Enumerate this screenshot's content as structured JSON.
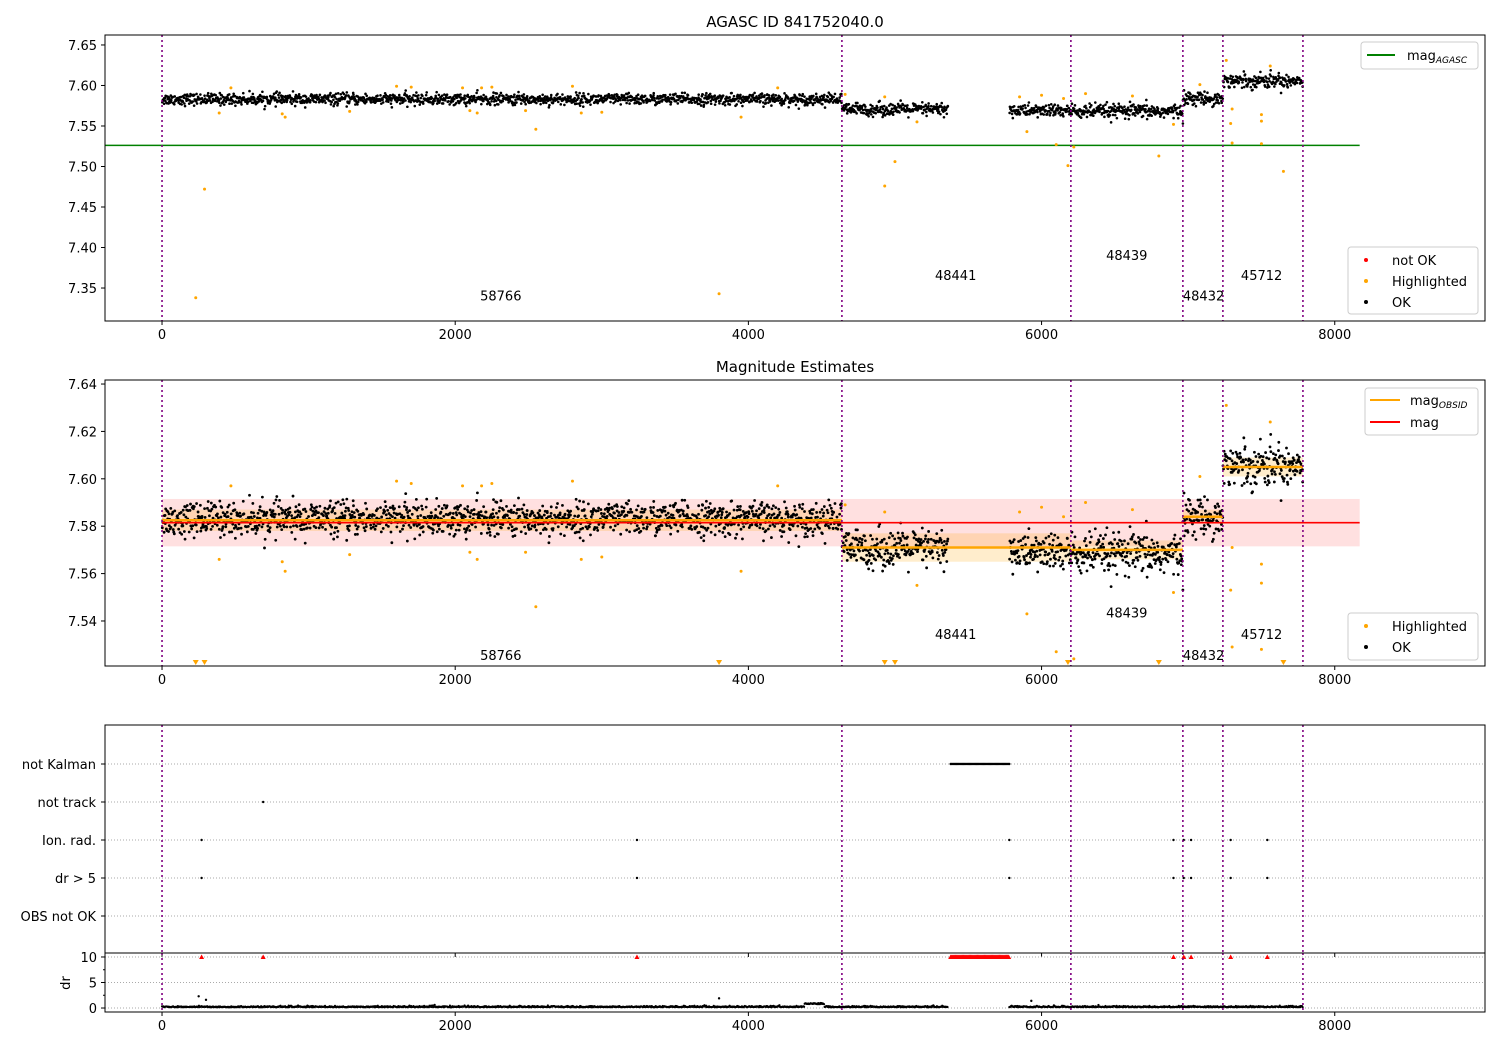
{
  "chart_data": [
    {
      "type": "scatter",
      "title": "AGASC ID 841752040.0",
      "xlim": [
        -389,
        9025
      ],
      "ylim": [
        7.3093,
        7.6623
      ],
      "xticks": [
        0,
        2000,
        4000,
        6000,
        8000
      ],
      "yticks": [
        7.35,
        7.4,
        7.45,
        7.5,
        7.55,
        7.6,
        7.65
      ],
      "ytick_labels": [
        "7.35",
        "7.40",
        "7.45",
        "7.50",
        "7.55",
        "7.60",
        "7.65"
      ],
      "mag_agasc": 7.526,
      "mag_agasc_xrange": [
        -389,
        8170
      ],
      "legend_top": {
        "label": "mag",
        "sub": "AGASC",
        "color": "#008000"
      },
      "legend_bottom": [
        {
          "label": "not OK",
          "color": "#ff0000"
        },
        {
          "label": "Highlighted",
          "color": "#ffa500"
        },
        {
          "label": "OK",
          "color": "#000000"
        }
      ]
    },
    {
      "type": "scatter",
      "title": "Magnitude Estimates",
      "xlim": [
        -389,
        9025
      ],
      "ylim": [
        7.521,
        7.6417
      ],
      "xticks": [
        0,
        2000,
        4000,
        6000,
        8000
      ],
      "yticks": [
        7.54,
        7.56,
        7.58,
        7.6,
        7.62,
        7.64
      ],
      "ytick_labels": [
        "7.54",
        "7.56",
        "7.58",
        "7.60",
        "7.62",
        "7.64"
      ],
      "mag": 7.5815,
      "mag_band": [
        7.5715,
        7.5915
      ],
      "mag_xrange": [
        0,
        8170
      ],
      "obsid_mags": [
        {
          "x": [
            0,
            4638
          ],
          "mag": 7.5825,
          "band": [
            7.578,
            7.587
          ]
        },
        {
          "x": [
            4638,
            6200
          ],
          "mag": 7.571,
          "band": [
            7.565,
            7.577
          ]
        },
        {
          "x": [
            6200,
            6964
          ],
          "mag": 7.57,
          "band": [
            7.566,
            7.574
          ]
        },
        {
          "x": [
            6964,
            7237
          ],
          "mag": 7.584,
          "band": [
            7.581,
            7.587
          ]
        },
        {
          "x": [
            7237,
            7783
          ],
          "mag": 7.605,
          "band": [
            7.601,
            7.609
          ]
        }
      ],
      "legend_top": [
        {
          "label": "mag",
          "sub": "OBSID",
          "color": "#ffa500"
        },
        {
          "label": "mag",
          "sub": "",
          "color": "#ff0000"
        }
      ],
      "legend_bottom": [
        {
          "label": "Highlighted",
          "color": "#ffa500"
        },
        {
          "label": "OK",
          "color": "#000000"
        }
      ]
    },
    {
      "type": "scatter",
      "title": "",
      "categories": [
        "not Kalman",
        "not track",
        "Ion. rad.",
        "dr > 5",
        "OBS not OK"
      ],
      "xticks": [
        0,
        2000,
        4000,
        6000,
        8000
      ],
      "flags": {
        "not Kalman": {
          "range": [
            5380,
            5780
          ]
        },
        "not track": {
          "x": [
            690
          ]
        },
        "Ion. rad.": {
          "x": [
            270,
            3240,
            5780,
            6900,
            6970,
            7020,
            7290,
            7540
          ]
        },
        "dr > 5": {
          "x": [
            270,
            3240,
            5780,
            6900,
            6970,
            7020,
            7290,
            7540
          ]
        },
        "OBS not OK": {
          "x": []
        }
      }
    },
    {
      "type": "scatter",
      "ylabel": "dr",
      "ylim": [
        -0.78,
        10.78
      ],
      "yticks": [
        0,
        5,
        10
      ],
      "ytick_labels": [
        "0",
        "5",
        "10"
      ],
      "xticks": [
        0,
        2000,
        4000,
        6000,
        8000
      ],
      "xtick_labels": [
        "0",
        "2000",
        "4000",
        "6000",
        "8000"
      ],
      "clipped_at": 10,
      "clipped_x": [
        270,
        690,
        3240,
        6900,
        6970,
        7020,
        7290,
        7540
      ],
      "outliers": [
        [
          250,
          2.3
        ],
        [
          300,
          1.6
        ],
        [
          3800,
          1.9
        ],
        [
          5930,
          1.4
        ]
      ]
    }
  ],
  "xtick_labels": [
    "0",
    "2000",
    "4000",
    "6000",
    "8000"
  ],
  "obsid_boundaries": [
    0,
    4638,
    6200,
    6964,
    7237,
    7783
  ],
  "obsid_labels": [
    {
      "text": "58766",
      "x": 2170,
      "y1": 7.325,
      "y2": 7.526
    },
    {
      "text": "48441",
      "x": 5273,
      "y1": 7.35,
      "y2": 7.535
    },
    {
      "text": "48439",
      "x": 6440,
      "y1": 7.375,
      "y2": 7.544
    },
    {
      "text": "48432",
      "x": 6964,
      "y1": 7.325,
      "y2": 7.526
    },
    {
      "text": "45712",
      "x": 7360,
      "y1": 7.35,
      "y2": 7.535
    }
  ],
  "segments": [
    {
      "x": [
        0,
        4638
      ],
      "mean": 7.583,
      "std": 0.0035
    },
    {
      "x": [
        4638,
        5360
      ],
      "mean": 7.5705,
      "std": 0.004
    },
    {
      "x": [
        5780,
        6200
      ],
      "mean": 7.569,
      "std": 0.004
    },
    {
      "x": [
        6200,
        6964
      ],
      "mean": 7.568,
      "std": 0.0045
    },
    {
      "x": [
        6964,
        7237
      ],
      "mean": 7.584,
      "std": 0.004
    },
    {
      "x": [
        7237,
        7783
      ],
      "mean": 7.606,
      "std": 0.0045
    }
  ],
  "highlighted": [
    [
      230,
      7.338
    ],
    [
      290,
      7.472
    ],
    [
      3800,
      7.343
    ],
    [
      4930,
      7.476
    ],
    [
      5000,
      7.506
    ],
    [
      6180,
      7.501
    ],
    [
      6800,
      7.513
    ],
    [
      7650,
      7.494
    ],
    [
      7300,
      7.529
    ],
    [
      7500,
      7.528
    ],
    [
      7290,
      7.553
    ],
    [
      7500,
      7.556
    ],
    [
      5900,
      7.543
    ],
    [
      2550,
      7.546
    ],
    [
      4930,
      7.586
    ],
    [
      5150,
      7.555
    ],
    [
      6220,
      7.524
    ],
    [
      6100,
      7.527
    ],
    [
      7300,
      7.571
    ],
    [
      7260,
      7.631
    ],
    [
      7560,
      7.624
    ],
    [
      7500,
      7.564
    ],
    [
      6900,
      7.552
    ],
    [
      7080,
      7.601
    ],
    [
      390,
      7.566
    ],
    [
      470,
      7.597
    ],
    [
      840,
      7.561
    ],
    [
      820,
      7.565
    ],
    [
      1600,
      7.599
    ],
    [
      1700,
      7.598
    ],
    [
      2050,
      7.597
    ],
    [
      2180,
      7.597
    ],
    [
      2250,
      7.598
    ],
    [
      2800,
      7.599
    ],
    [
      2860,
      7.566
    ],
    [
      3000,
      7.567
    ],
    [
      3950,
      7.561
    ],
    [
      4200,
      7.597
    ],
    [
      2150,
      7.566
    ],
    [
      2100,
      7.569
    ],
    [
      5850,
      7.586
    ],
    [
      6000,
      7.588
    ],
    [
      6300,
      7.59
    ],
    [
      6620,
      7.587
    ],
    [
      6150,
      7.584
    ],
    [
      4660,
      7.589
    ],
    [
      2480,
      7.569
    ],
    [
      1280,
      7.568
    ]
  ],
  "below_range_x": [
    230,
    290,
    3800,
    4930,
    5000,
    6180,
    6800,
    7650
  ]
}
